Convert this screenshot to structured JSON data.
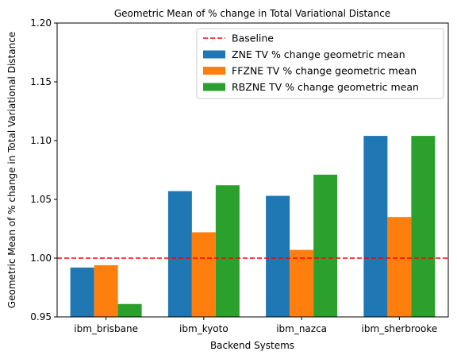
{
  "chart_data": {
    "type": "bar",
    "title": "Geometric Mean of % change in Total Variational Distance",
    "xlabel": "Backend Systems",
    "ylabel": "Geometric Mean of % change in Total Variational Distance",
    "categories": [
      "ibm_brisbane",
      "ibm_kyoto",
      "ibm_nazca",
      "ibm_sherbrooke"
    ],
    "series": [
      {
        "name": "ZNE TV % change geometric mean",
        "color": "#1f77b4",
        "values": [
          0.992,
          1.057,
          1.053,
          1.104
        ]
      },
      {
        "name": "FFZNE TV % change geometric mean",
        "color": "#ff7f0e",
        "values": [
          0.994,
          1.022,
          1.007,
          1.035
        ]
      },
      {
        "name": "RBZNE TV % change geometric mean",
        "color": "#2ca02c",
        "values": [
          0.961,
          1.062,
          1.071,
          1.104
        ]
      }
    ],
    "baseline": {
      "name": "Baseline",
      "value": 1.0,
      "color": "#ff0000",
      "style": "dashed"
    },
    "ylim": [
      0.95,
      1.2
    ],
    "yticks": [
      "0.95",
      "1.00",
      "1.05",
      "1.10",
      "1.15",
      "1.20"
    ],
    "grid": false,
    "legend_position": "top-right"
  }
}
